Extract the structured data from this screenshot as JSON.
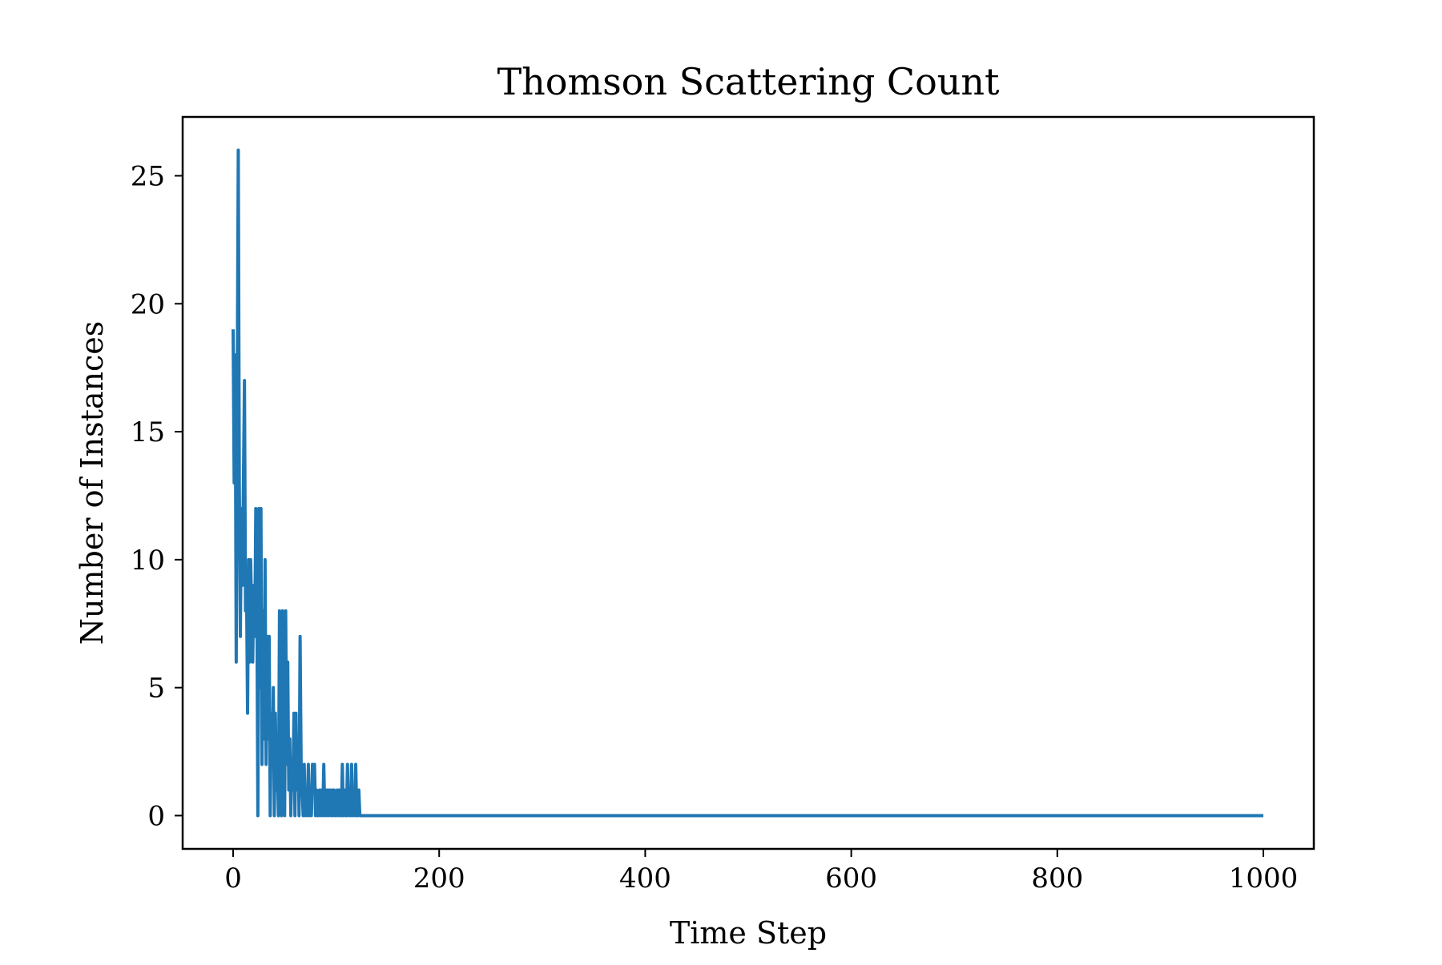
{
  "chart_data": {
    "type": "line",
    "title": "Thomson Scattering Count",
    "xlabel": "Time Step",
    "ylabel": "Number of Instances",
    "xlim": [
      -49,
      1049
    ],
    "ylim": [
      -1.3,
      27.3
    ],
    "xticks": [
      0,
      200,
      400,
      600,
      800,
      1000
    ],
    "yticks": [
      0,
      5,
      10,
      15,
      20,
      25
    ],
    "grid": false,
    "legend": "none",
    "colors": {
      "line": "#1f77b4",
      "axes": "#000000",
      "background": "#ffffff"
    },
    "series": [
      {
        "x": [
          0,
          1,
          2,
          3,
          4,
          5,
          6,
          7,
          8,
          9,
          10,
          11,
          12,
          13,
          14,
          15,
          16,
          17,
          18,
          19,
          20,
          21,
          22,
          23,
          24,
          25,
          26,
          27,
          28,
          29,
          30,
          31,
          32,
          33,
          34,
          35,
          36,
          37,
          38,
          39,
          40,
          41,
          42,
          43,
          44,
          45,
          46,
          47,
          48,
          49,
          50,
          51,
          52,
          53,
          54,
          55,
          56,
          57,
          58,
          59,
          60,
          61,
          62,
          63,
          64,
          65,
          66,
          67,
          68,
          69,
          70,
          71,
          72,
          73,
          74,
          75,
          76,
          77,
          78,
          79,
          80,
          81,
          82,
          83,
          84,
          85,
          86,
          87,
          88,
          89,
          90,
          91,
          92,
          93,
          94,
          95,
          96,
          97,
          98,
          99,
          100,
          101,
          102,
          103,
          104,
          105,
          106,
          107,
          108,
          109,
          110,
          111,
          112,
          113,
          114,
          115,
          116,
          117,
          118,
          119,
          120,
          121,
          122,
          123,
          124,
          125,
          126,
          127,
          128,
          129,
          130,
          131,
          132,
          133,
          134,
          135,
          136,
          137,
          138,
          139,
          140,
          1000
        ],
        "y": [
          19,
          13,
          18,
          6,
          17,
          26,
          13,
          7,
          12,
          9,
          13,
          17,
          8,
          9,
          4,
          10,
          6,
          10,
          8,
          6,
          9,
          7,
          12,
          9,
          0,
          12,
          5,
          12,
          2,
          8,
          3,
          10,
          2,
          7,
          3,
          7,
          0,
          4,
          2,
          5,
          0,
          4,
          1,
          2,
          0,
          8,
          2,
          0,
          8,
          3,
          0,
          8,
          2,
          6,
          1,
          3,
          0,
          2,
          1,
          4,
          0,
          4,
          1,
          3,
          0,
          7,
          2,
          1,
          0,
          2,
          0,
          1,
          0,
          2,
          0,
          1,
          0,
          2,
          1,
          2,
          0,
          1,
          0,
          0,
          1,
          0,
          1,
          0,
          2,
          0,
          1,
          0,
          1,
          0,
          1,
          0,
          1,
          0,
          1,
          0,
          0,
          1,
          0,
          1,
          0,
          0,
          2,
          0,
          1,
          0,
          0,
          2,
          0,
          1,
          0,
          2,
          0,
          1,
          0,
          2,
          0,
          0,
          1,
          0,
          0,
          0,
          0,
          0,
          0,
          0,
          0,
          0,
          0,
          0,
          0,
          0,
          0,
          0,
          0,
          0,
          0,
          0
        ]
      }
    ]
  }
}
